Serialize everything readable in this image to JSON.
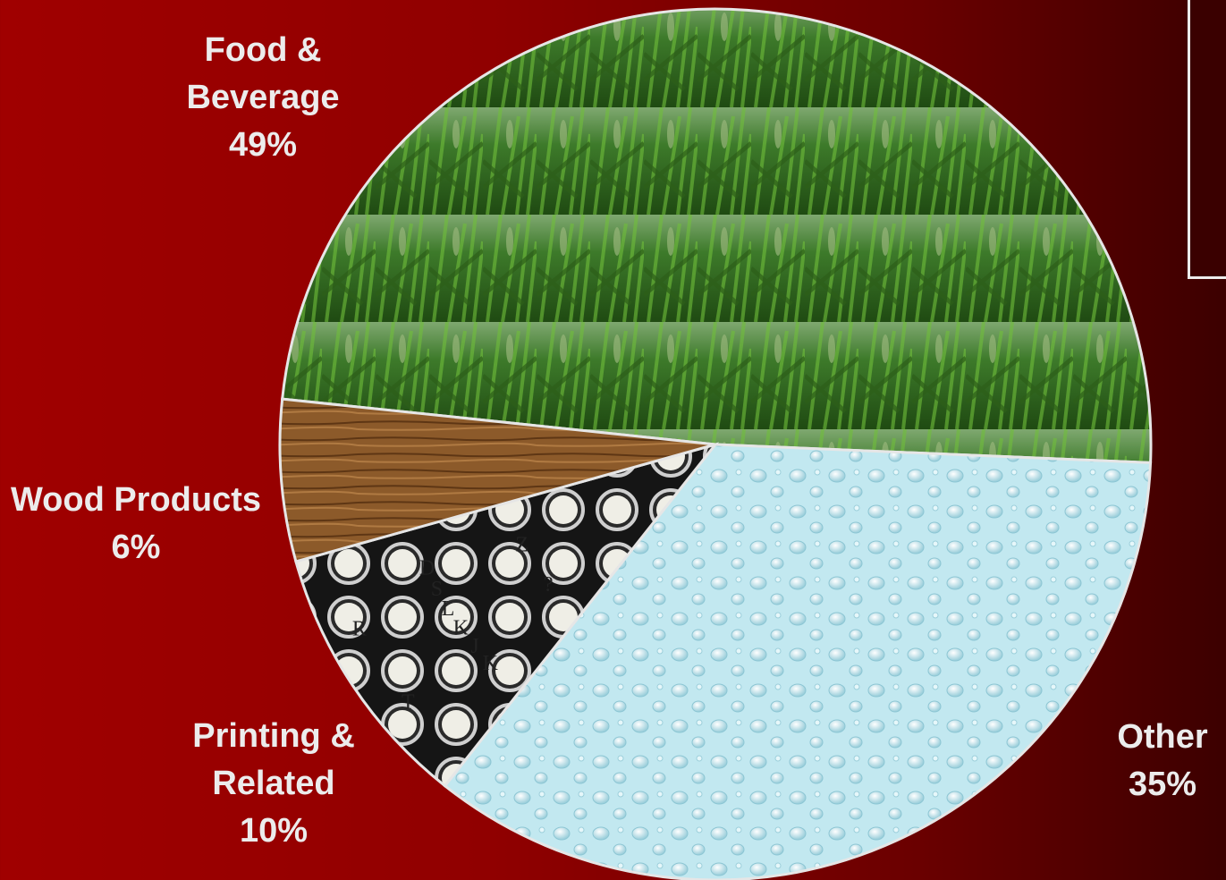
{
  "chart_data": {
    "type": "pie",
    "title": "",
    "start_angle_deg": 186,
    "direction": "clockwise",
    "slices": [
      {
        "name": "Food & Beverage",
        "name_lines": [
          "Food &",
          "Beverage"
        ],
        "percent_label": "49%",
        "value": 49,
        "texture": "wheat-field",
        "color": "#3f7a25"
      },
      {
        "name": "Other",
        "name_lines": [
          "Other"
        ],
        "percent_label": "35%",
        "value": 35,
        "texture": "water-droplets",
        "color": "#bfe6ee"
      },
      {
        "name": "Printing & Related",
        "name_lines": [
          "Printing &",
          "Related"
        ],
        "percent_label": "10%",
        "value": 10,
        "texture": "typewriter-keys",
        "color": "#1e1e1e"
      },
      {
        "name": "Wood Products",
        "name_lines": [
          "Wood Products"
        ],
        "percent_label": "6%",
        "value": 6,
        "texture": "wood-grain",
        "color": "#8a5a2b"
      }
    ],
    "typewriter_keys": [
      "T",
      "R",
      "K",
      "J",
      "K",
      "L",
      "S",
      "D",
      "?",
      "Z"
    ]
  },
  "colors": {
    "label_text": "#ececec",
    "background_left": "#a00000",
    "background_right": "#3c0000",
    "slice_border": "#e6e6e6"
  }
}
